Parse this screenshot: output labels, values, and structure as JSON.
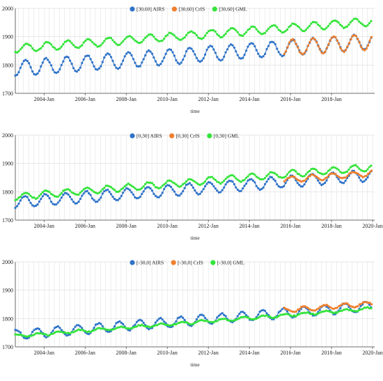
{
  "colors": {
    "AIRS": "#2f73c8",
    "CrIS": "#f07f2c",
    "GML": "#33e43a",
    "grid": "#dcdcdc",
    "axis": "#444444"
  },
  "chart_data": [
    {
      "type": "line",
      "x_unit": "decimal year",
      "xlabel": "time",
      "xlim": [
        2002.6,
        2020.1
      ],
      "ylim": [
        1700,
        2000
      ],
      "yticks": [
        1700,
        1800,
        1900,
        2000
      ],
      "xticks": [
        {
          "value": 2004,
          "label": "2004-Jan"
        },
        {
          "value": 2006,
          "label": "2006-Jan"
        },
        {
          "value": 2008,
          "label": "2008-Jan"
        },
        {
          "value": 2010,
          "label": "2010-Jan"
        },
        {
          "value": 2012,
          "label": "2012-Jan"
        },
        {
          "value": 2014,
          "label": "2014-Jan"
        },
        {
          "value": 2016,
          "label": "2016-Jan"
        },
        {
          "value": 2018,
          "label": "2018-Jan"
        }
      ],
      "grid": true,
      "legend_position": "top-center",
      "series": [
        {
          "name": "[30,60] AIRS",
          "key": "AIRS",
          "start": 2002.6,
          "end": 2020.0,
          "base": 1790,
          "trend": 5.5,
          "amp": 27,
          "phase": 0.15,
          "step": 0.0833
        },
        {
          "name": "[30,60] CrIS",
          "key": "CrIS",
          "start": 2015.7,
          "end": 2020.0,
          "base": 1790,
          "trend": 5.5,
          "amp": 28,
          "phase": 0.15,
          "step": 0.0833
        },
        {
          "name": "[30,60] GML",
          "key": "GML",
          "start": 2002.6,
          "end": 2020.0,
          "base": 1860,
          "trend": 5.5,
          "amp": 14,
          "phase": 0.1,
          "step": 0.0833
        }
      ]
    },
    {
      "type": "line",
      "x_unit": "decimal year",
      "xlabel": "time",
      "xlim": [
        2002.6,
        2020.1
      ],
      "ylim": [
        1700,
        2000
      ],
      "yticks": [
        1700,
        1800,
        1900,
        2000
      ],
      "xticks": [
        {
          "value": 2004,
          "label": "2004-Jan"
        },
        {
          "value": 2006,
          "label": "2006-Jan"
        },
        {
          "value": 2008,
          "label": "2008-Jan"
        },
        {
          "value": 2010,
          "label": "2010-Jan"
        },
        {
          "value": 2012,
          "label": "2012-Jan"
        },
        {
          "value": 2014,
          "label": "2014-Jan"
        },
        {
          "value": 2016,
          "label": "2016-Jan"
        },
        {
          "value": 2018,
          "label": "2018-Jan"
        },
        {
          "value": 2020,
          "label": "2020-Jan"
        }
      ],
      "grid": true,
      "legend_position": "top-center",
      "series": [
        {
          "name": "[0,30] AIRS",
          "key": "AIRS",
          "start": 2002.6,
          "end": 2020.0,
          "base": 1765,
          "trend": 5.5,
          "amp": 20,
          "phase": 0.2,
          "step": 0.0833
        },
        {
          "name": "[0,30] CrIS",
          "key": "CrIS",
          "start": 2015.7,
          "end": 2020.0,
          "base": 1772,
          "trend": 5.5,
          "amp": 10,
          "phase": 0.2,
          "step": 0.0833
        },
        {
          "name": "[0,30] GML",
          "key": "GML",
          "start": 2002.6,
          "end": 2020.0,
          "base": 1785,
          "trend": 6.0,
          "amp": 12,
          "phase": 0.15,
          "step": 0.0833
        }
      ]
    },
    {
      "type": "line",
      "x_unit": "decimal year",
      "xlabel": "time",
      "xlim": [
        2002.6,
        2020.1
      ],
      "ylim": [
        1700,
        2000
      ],
      "yticks": [
        1700,
        1800,
        1900,
        2000
      ],
      "xticks": [
        {
          "value": 2004,
          "label": "2004-Jan"
        },
        {
          "value": 2006,
          "label": "2006-Jan"
        },
        {
          "value": 2008,
          "label": "2008-Jan"
        },
        {
          "value": 2010,
          "label": "2010-Jan"
        },
        {
          "value": 2012,
          "label": "2012-Jan"
        },
        {
          "value": 2014,
          "label": "2014-Jan"
        },
        {
          "value": 2016,
          "label": "2016-Jan"
        },
        {
          "value": 2018,
          "label": "2018-Jan"
        },
        {
          "value": 2020,
          "label": "2020-Jan"
        }
      ],
      "grid": true,
      "legend_position": "top-center",
      "series": [
        {
          "name": "[-30,0] AIRS",
          "key": "AIRS",
          "start": 2002.6,
          "end": 2020.0,
          "base": 1745,
          "trend": 5.8,
          "amp": 17,
          "phase": 0.6,
          "step": 0.0833
        },
        {
          "name": "[-30,0] CrIS",
          "key": "CrIS",
          "start": 2015.7,
          "end": 2020.0,
          "base": 1755,
          "trend": 5.8,
          "amp": 8,
          "phase": 0.6,
          "step": 0.0833
        },
        {
          "name": "[-30,0] GML",
          "key": "GML",
          "start": 2002.6,
          "end": 2020.0,
          "base": 1740,
          "trend": 5.6,
          "amp": 5,
          "phase": 0.55,
          "step": 0.0833
        }
      ]
    }
  ]
}
